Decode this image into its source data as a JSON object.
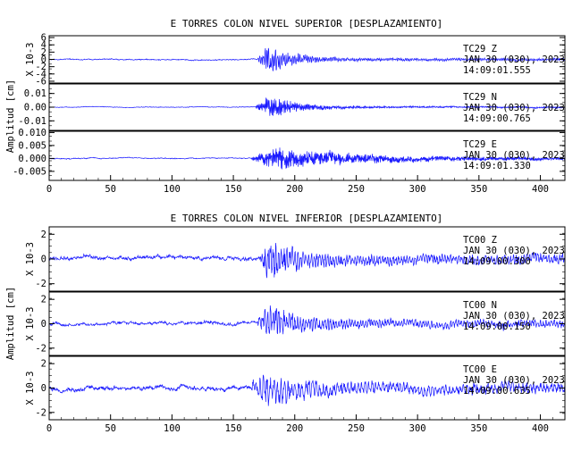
{
  "colors": {
    "trace": "#1a1aff",
    "axis": "#000000",
    "background": "#ffffff"
  },
  "figures": [
    {
      "title": "E TORRES COLON NIVEL SUPERIOR [DESPLAZAMIENTO]",
      "ylabel": "Amplitud [cm]",
      "xticks": [
        "0",
        "50",
        "100",
        "150",
        "200",
        "250",
        "300",
        "350",
        "400"
      ]
    },
    {
      "title": "E TORRES COLON NIVEL INFERIOR [DESPLAZAMIENTO]",
      "ylabel": "Amplitud [cm]",
      "xticks": [
        "0",
        "50",
        "100",
        "150",
        "200",
        "250",
        "300",
        "350",
        "400"
      ]
    }
  ],
  "chart_data": [
    {
      "type": "line",
      "title": "E TORRES COLON NIVEL SUPERIOR [DESPLAZAMIENTO]",
      "ylabel": "Amplitud [cm]",
      "xlim": [
        0,
        420
      ],
      "series": [
        {
          "name": "TC29 Z",
          "channel": "TC29 Z",
          "date": "JAN 30 (030), 2023",
          "time": "14:09:01.555",
          "scale_label": "X 10-3",
          "yticks": [
            "6",
            "4",
            "2",
            "0",
            "-2",
            "-4",
            "-6"
          ],
          "ylim": [
            -6.5,
            6.5
          ],
          "envelope": {
            "base": 0.5,
            "peak": 5.5,
            "onset": 170,
            "peak_time": 178,
            "decay": 20,
            "freq": 1.4
          }
        },
        {
          "name": "TC29 N",
          "channel": "TC29 N",
          "date": "JAN 30 (030), 2023",
          "time": "14:09:00.765",
          "scale_label": "",
          "yticks": [
            "0.01",
            "0.00",
            "-0.01"
          ],
          "ylim": [
            -0.017,
            0.017
          ],
          "envelope": {
            "base": 0.0008,
            "peak": 0.012,
            "onset": 168,
            "peak_time": 180,
            "decay": 22,
            "freq": 2.2
          }
        },
        {
          "name": "TC29 E",
          "channel": "TC29 E",
          "date": "JAN 30 (030), 2023",
          "time": "14:09:01.330",
          "scale_label": "",
          "yticks": [
            "0.010",
            "0.005",
            "0.000",
            "-0.005"
          ],
          "ylim": [
            -0.0085,
            0.0105
          ],
          "envelope": {
            "base": 0.0006,
            "peak": 0.006,
            "onset": 165,
            "peak_time": 182,
            "decay": 70,
            "freq": 2.6
          }
        }
      ],
      "xticks": [
        0,
        50,
        100,
        150,
        200,
        250,
        300,
        350,
        400
      ]
    },
    {
      "type": "line",
      "title": "E TORRES COLON NIVEL INFERIOR [DESPLAZAMIENTO]",
      "ylabel": "Amplitud [cm]",
      "xlim": [
        0,
        420
      ],
      "series": [
        {
          "name": "TC00 Z",
          "channel": "TC00 Z",
          "date": "JAN 30 (030), 2023",
          "time": "14:09:00.300",
          "scale_label": "X 10-3",
          "yticks": [
            "2",
            "0",
            "-2"
          ],
          "ylim": [
            -2.6,
            2.6
          ],
          "envelope": {
            "base": 0.55,
            "peak": 2.2,
            "onset": 172,
            "peak_time": 178,
            "decay": 25,
            "freq": 0.9
          }
        },
        {
          "name": "TC00 N",
          "channel": "TC00 N",
          "date": "JAN 30 (030), 2023",
          "time": "14:09:00.150",
          "scale_label": "X 10-3",
          "yticks": [
            "2",
            "0",
            "-2"
          ],
          "ylim": [
            -2.6,
            2.6
          ],
          "envelope": {
            "base": 0.45,
            "peak": 2.0,
            "onset": 170,
            "peak_time": 180,
            "decay": 25,
            "freq": 0.9
          }
        },
        {
          "name": "TC00 E",
          "channel": "TC00 E",
          "date": "JAN 30 (030), 2023",
          "time": "14:09:00.635",
          "scale_label": "X 10-3",
          "yticks": [
            "2",
            "0",
            "-2"
          ],
          "ylim": [
            -2.6,
            2.6
          ],
          "envelope": {
            "base": 0.6,
            "peak": 2.1,
            "onset": 165,
            "peak_time": 176,
            "decay": 28,
            "freq": 0.7
          }
        }
      ],
      "xticks": [
        0,
        50,
        100,
        150,
        200,
        250,
        300,
        350,
        400
      ]
    }
  ]
}
